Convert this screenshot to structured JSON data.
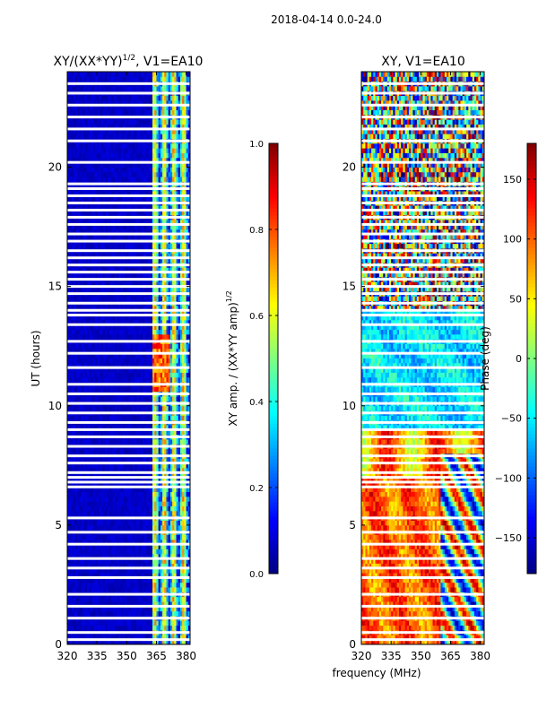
{
  "figure": {
    "suptitle": "2018-04-14 0.0-24.0",
    "shared_xlabel": "frequency (MHz)"
  },
  "colors": {
    "jet": [
      "#00007f",
      "#0000ff",
      "#007fff",
      "#00ffff",
      "#7fff7f",
      "#ffff00",
      "#ff7f00",
      "#ff0000",
      "#7f0000"
    ],
    "gap": "#ffffff"
  },
  "chart_data": [
    {
      "type": "heatmap",
      "title_prefix": "XY/(XX*YY)",
      "title_exp": "1/2",
      "title_suffix": ", V1=EA10",
      "xlabel": "",
      "ylabel": "UT (hours)",
      "xlim": [
        320,
        382
      ],
      "ylim": [
        0,
        24
      ],
      "xticks": [
        320,
        335,
        350,
        365,
        380
      ],
      "xtick_labels": [
        "320",
        "335",
        "350",
        "365",
        "380"
      ],
      "yticks": [
        0,
        5,
        10,
        15,
        20
      ],
      "ytick_labels": [
        "0",
        "5",
        "10",
        "15",
        "20"
      ],
      "value_range": [
        0.0,
        1.0
      ],
      "colorbar_label_main": "XY amp. / (XX*YY amp)",
      "colorbar_label_exp": "1/2",
      "colorbar_ticks": [
        0.0,
        0.2,
        0.4,
        0.6,
        0.8,
        1.0
      ],
      "colorbar_tick_labels": [
        "0.0",
        "0.2",
        "0.4",
        "0.6",
        "0.8",
        "1.0"
      ],
      "mode": "amp",
      "flagged_hours": [
        0.2,
        0.5,
        1.1,
        1.6,
        2.1,
        2.8,
        3.2,
        3.6,
        4.2,
        4.7,
        5.3,
        6.6,
        6.8,
        7.0,
        7.2,
        7.6,
        7.9,
        8.3,
        8.7,
        9.0,
        9.3,
        9.7,
        10.1,
        10.5,
        10.9,
        11.6,
        12.2,
        12.7,
        13.4,
        13.8,
        14.0,
        14.3,
        14.7,
        15.0,
        15.3,
        15.6,
        15.9,
        16.2,
        16.5,
        16.9,
        17.2,
        17.6,
        17.9,
        18.2,
        18.5,
        18.8,
        19.1,
        19.3,
        20.2,
        21.1,
        21.6,
        22.1,
        22.6,
        23.1,
        23.5
      ]
    },
    {
      "type": "heatmap",
      "title_prefix": "XY, V1=EA10",
      "title_exp": "",
      "title_suffix": "",
      "xlabel": "frequency (MHz)",
      "ylabel": "",
      "xlim": [
        320,
        382
      ],
      "ylim": [
        0,
        24
      ],
      "xticks": [
        320,
        335,
        350,
        365,
        380
      ],
      "xtick_labels": [
        "320",
        "335",
        "350",
        "365",
        "380"
      ],
      "yticks": [
        0,
        5,
        10,
        15,
        20
      ],
      "ytick_labels": [
        "0",
        "5",
        "10",
        "15",
        "20"
      ],
      "value_range": [
        -180,
        180
      ],
      "colorbar_label_main": "Phase (deg)",
      "colorbar_label_exp": "",
      "colorbar_ticks": [
        150,
        100,
        50,
        0,
        -50,
        -100,
        -150
      ],
      "colorbar_tick_labels": [
        "150",
        "100",
        "50",
        "0",
        "−50",
        "−100",
        "−150"
      ],
      "mode": "phase",
      "flagged_hours": [
        0.2,
        0.5,
        1.1,
        1.6,
        2.1,
        2.8,
        3.2,
        3.6,
        4.2,
        4.7,
        5.3,
        6.6,
        6.8,
        7.0,
        7.2,
        7.6,
        7.9,
        8.3,
        8.7,
        9.0,
        9.3,
        9.7,
        10.1,
        10.5,
        10.9,
        11.6,
        12.2,
        12.7,
        13.4,
        13.8,
        14.0,
        14.3,
        14.7,
        15.0,
        15.3,
        15.6,
        15.9,
        16.2,
        16.5,
        16.9,
        17.2,
        17.6,
        17.9,
        18.2,
        18.5,
        18.8,
        19.1,
        19.3,
        20.2,
        21.1,
        21.6,
        22.1,
        22.6,
        23.1,
        23.5
      ]
    }
  ]
}
